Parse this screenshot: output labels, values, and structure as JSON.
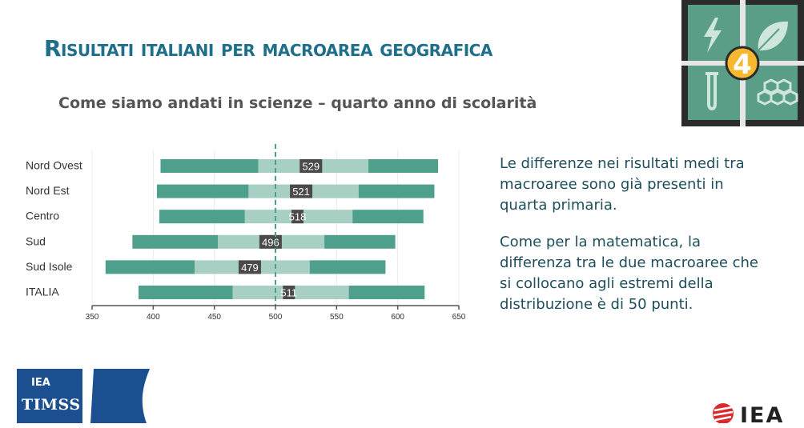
{
  "slide": {
    "title": "Risultati italiani per macroarea geografica",
    "subtitle": "Come siamo andati in scienze – quarto anno di scolarità",
    "description": [
      "Le differenze nei risultati medi tra macroaree sono già presenti in quarta primaria.",
      "Come per la matematica, la differenza tra le due macroaree che si collocano agli estremi della distribuzione è di 50 punti."
    ]
  },
  "logos": {
    "tile_number": "4",
    "timss_iea": "IEA",
    "timss_name": "TIMSS",
    "iea_name": "IEA"
  },
  "colors": {
    "title": "#1f6f8b",
    "bar_dark": "#4e9f8b",
    "bar_light": "#a8cfc4",
    "mean_box": "#4a4a4a",
    "tile_bg": "#5a9e88",
    "tile_frame": "#2b2b2b",
    "tile_badge": "#f5b82e",
    "timss_blue": "#1b4f8f"
  },
  "chart_data": {
    "type": "bar",
    "categories": [
      "Nord Ovest",
      "Nord Est",
      "Centro",
      "Sud",
      "Sud Isole",
      "ITALIA"
    ],
    "x_ticks": [
      350,
      400,
      450,
      500,
      550,
      600,
      650
    ],
    "xlim": [
      350,
      650
    ],
    "reference_line": 500,
    "rows": [
      {
        "label": "Nord Ovest",
        "p5": 406,
        "p25": 486,
        "mean": 529,
        "p75": 576,
        "p95": 633
      },
      {
        "label": "Nord Est",
        "p5": 403,
        "p25": 478,
        "mean": 521,
        "p75": 568,
        "p95": 630
      },
      {
        "label": "Centro",
        "p5": 405,
        "p25": 475,
        "mean": 518,
        "p75": 563,
        "p95": 621
      },
      {
        "label": "Sud",
        "p5": 383,
        "p25": 453,
        "mean": 496,
        "p75": 540,
        "p95": 598
      },
      {
        "label": "Sud Isole",
        "p5": 361,
        "p25": 434,
        "mean": 479,
        "p75": 528,
        "p95": 590
      },
      {
        "label": "ITALIA",
        "p5": 388,
        "p25": 465,
        "mean": 511,
        "p75": 560,
        "p95": 622
      }
    ]
  }
}
